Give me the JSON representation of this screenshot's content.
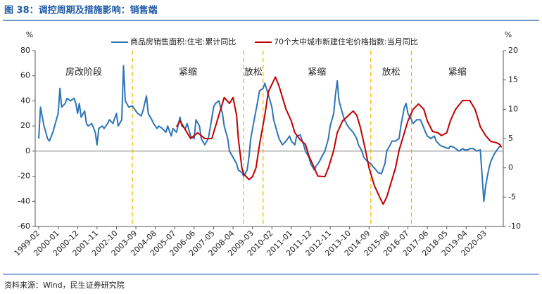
{
  "chart_data": {
    "type": "line",
    "title": "图 38：调控周期及措施影响：销售端",
    "source": "资料来源：Wind，民生证券研究院",
    "y_label": "%",
    "y2_label": "%",
    "legend": "top",
    "xlim": [
      "1998-12",
      "2021-01"
    ],
    "xticks": [
      "1999-02",
      "2000-01",
      "2000-12",
      "2001-11",
      "2002-10",
      "2003-09",
      "2004-08",
      "2005-07",
      "2006-06",
      "2007-05",
      "2008-04",
      "2009-03",
      "2010-02",
      "2011-01",
      "2011-12",
      "2012-11",
      "2013-10",
      "2014-09",
      "2015-08",
      "2016-07",
      "2017-06",
      "2018-05",
      "2019-04",
      "2020-03"
    ],
    "ylim": [
      -60,
      80
    ],
    "yticks": [
      -60,
      -40,
      -20,
      0,
      20,
      40,
      60,
      80
    ],
    "y2lim": [
      -10,
      20
    ],
    "y2ticks": [
      -10,
      -5,
      0,
      5,
      10,
      15,
      20
    ],
    "dividers": [
      "2003-07",
      "2008-10",
      "2009-09",
      "2014-10",
      "2016-09"
    ],
    "phases": [
      "房改阶段",
      "紧缩",
      "放松",
      "紧缩",
      "放松",
      "紧缩"
    ],
    "series": [
      {
        "name": "商品房销售面积:住宅:累计同比",
        "color": "#2E75B6",
        "x": [
          "1999-02",
          "1999-03",
          "1999-05",
          "1999-07",
          "1999-08",
          "1999-10",
          "2000-01",
          "2000-02",
          "2000-03",
          "2000-05",
          "2000-06",
          "2000-08",
          "2000-10",
          "2000-11",
          "2000-12",
          "2001-01",
          "2001-02",
          "2001-04",
          "2001-05",
          "2001-06",
          "2001-08",
          "2001-10",
          "2001-11",
          "2001-12",
          "2002-02",
          "2002-03",
          "2002-05",
          "2002-06",
          "2002-08",
          "2002-10",
          "2002-11",
          "2003-01",
          "2003-02",
          "2003-03",
          "2003-05",
          "2003-07",
          "2003-08",
          "2003-10",
          "2003-12",
          "2004-01",
          "2004-03",
          "2004-04",
          "2004-06",
          "2004-07",
          "2004-09",
          "2004-10",
          "2004-12",
          "2005-02",
          "2005-03",
          "2005-05",
          "2005-06",
          "2005-08",
          "2005-10",
          "2005-11",
          "2006-01",
          "2006-02",
          "2006-04",
          "2006-06",
          "2006-07",
          "2006-09",
          "2006-10",
          "2006-12",
          "2007-02",
          "2007-03",
          "2007-05",
          "2007-06",
          "2007-08",
          "2007-10",
          "2007-11",
          "2008-01",
          "2008-02",
          "2008-04",
          "2008-06",
          "2008-07",
          "2008-09",
          "2008-10",
          "2008-12",
          "2009-01",
          "2009-02",
          "2009-04",
          "2009-06",
          "2009-07",
          "2009-09",
          "2009-10",
          "2009-12",
          "2010-02",
          "2010-03",
          "2010-05",
          "2010-06",
          "2010-08",
          "2010-10",
          "2010-12",
          "2011-01",
          "2011-03",
          "2011-04",
          "2011-06",
          "2011-08",
          "2011-09",
          "2011-11",
          "2011-12",
          "2012-02",
          "2012-03",
          "2012-05",
          "2012-06",
          "2012-08",
          "2012-10",
          "2012-11",
          "2013-01",
          "2013-02",
          "2013-03",
          "2013-04",
          "2013-06",
          "2013-07",
          "2013-09",
          "2013-10",
          "2013-12",
          "2014-02",
          "2014-03",
          "2014-05",
          "2014-06",
          "2014-08",
          "2014-10",
          "2014-11",
          "2015-01",
          "2015-02",
          "2015-04",
          "2015-06",
          "2015-07",
          "2015-09",
          "2015-10",
          "2015-12",
          "2016-02",
          "2016-03",
          "2016-05",
          "2016-06",
          "2016-07",
          "2016-09",
          "2016-10",
          "2016-12",
          "2017-02",
          "2017-03",
          "2017-05",
          "2017-06",
          "2017-08",
          "2017-10",
          "2017-11",
          "2018-01",
          "2018-02",
          "2018-04",
          "2018-06",
          "2018-07",
          "2018-09",
          "2018-10",
          "2018-12",
          "2019-02",
          "2019-03",
          "2019-05",
          "2019-06",
          "2019-08",
          "2019-10",
          "2019-12",
          "2020-02",
          "2020-03",
          "2020-04",
          "2020-05",
          "2020-06",
          "2020-07",
          "2020-08",
          "2020-09",
          "2020-10",
          "2020-11"
        ],
        "values": [
          10,
          35,
          20,
          10,
          8,
          15,
          30,
          50,
          35,
          38,
          42,
          40,
          42,
          38,
          30,
          38,
          27,
          32,
          22,
          20,
          22,
          15,
          5,
          18,
          20,
          18,
          22,
          25,
          22,
          30,
          20,
          25,
          68,
          40,
          35,
          36,
          34,
          30,
          28,
          32,
          44,
          30,
          25,
          22,
          18,
          20,
          18,
          15,
          20,
          12,
          18,
          15,
          27,
          20,
          18,
          22,
          12,
          10,
          25,
          20,
          10,
          5,
          10,
          18,
          35,
          38,
          40,
          30,
          20,
          10,
          0,
          -5,
          -10,
          -15,
          -17,
          -20,
          -15,
          -5,
          10,
          25,
          40,
          48,
          50,
          54,
          45,
          35,
          25,
          15,
          10,
          5,
          8,
          12,
          8,
          5,
          12,
          13,
          5,
          0,
          -5,
          -10,
          -15,
          -12,
          -8,
          -5,
          0,
          10,
          20,
          30,
          45,
          56,
          40,
          30,
          25,
          20,
          18,
          15,
          10,
          5,
          0,
          -5,
          -8,
          -10,
          -12,
          -15,
          -17,
          -18,
          -10,
          0,
          5,
          8,
          8,
          10,
          20,
          35,
          38,
          30,
          25,
          22,
          25,
          25,
          22,
          15,
          12,
          10,
          12,
          8,
          5,
          4,
          3,
          2,
          4,
          3,
          2,
          0,
          2,
          1,
          1,
          2,
          2,
          0,
          1,
          -40,
          -28,
          -20,
          -13,
          -8,
          -5,
          -2,
          0,
          2,
          4
        ]
      },
      {
        "name": "70个大中城市新建住宅价格指数:当月同比",
        "color": "#C00000",
        "axis": "y2",
        "x": [
          "2005-08",
          "2005-10",
          "2005-12",
          "2006-02",
          "2006-04",
          "2006-08",
          "2006-12",
          "2007-04",
          "2007-06",
          "2007-09",
          "2007-11",
          "2008-02",
          "2008-04",
          "2008-06",
          "2008-07",
          "2008-09",
          "2008-10",
          "2009-01",
          "2009-03",
          "2009-05",
          "2009-07",
          "2009-10",
          "2009-12",
          "2010-04",
          "2010-06",
          "2010-08",
          "2010-10",
          "2011-01",
          "2011-03",
          "2011-06",
          "2011-09",
          "2011-11",
          "2012-02",
          "2012-04",
          "2012-08",
          "2012-10",
          "2013-01",
          "2013-03",
          "2013-06",
          "2013-12",
          "2014-02",
          "2014-04",
          "2014-07",
          "2014-09",
          "2014-12",
          "2015-03",
          "2015-05",
          "2015-07",
          "2015-10",
          "2015-12",
          "2016-02",
          "2016-05",
          "2016-07",
          "2016-10",
          "2017-01",
          "2017-04",
          "2017-06",
          "2017-09",
          "2017-12",
          "2018-02",
          "2018-05",
          "2018-07",
          "2018-10",
          "2019-02",
          "2019-06",
          "2019-09",
          "2019-12",
          "2020-03",
          "2020-06",
          "2020-09",
          "2020-11",
          "2020-12"
        ],
        "values": [
          7,
          8,
          7,
          6,
          5,
          6,
          5,
          5,
          7,
          10,
          12,
          11,
          12,
          9,
          5,
          0,
          -1,
          -2,
          -1.5,
          0,
          4,
          9,
          13,
          15.5,
          14,
          12,
          10,
          8,
          6,
          4.8,
          4,
          2,
          0,
          -1.4,
          -1.5,
          0,
          3,
          6,
          8,
          9.7,
          9,
          7,
          3,
          0,
          -3,
          -5,
          -6.2,
          -5,
          -2,
          0,
          3,
          6,
          8,
          10,
          10.9,
          10,
          8,
          6.2,
          6,
          5.5,
          6,
          8,
          10,
          11.5,
          11.5,
          10,
          7,
          5.5,
          4.5,
          4.3,
          4,
          3.5
        ]
      }
    ]
  }
}
